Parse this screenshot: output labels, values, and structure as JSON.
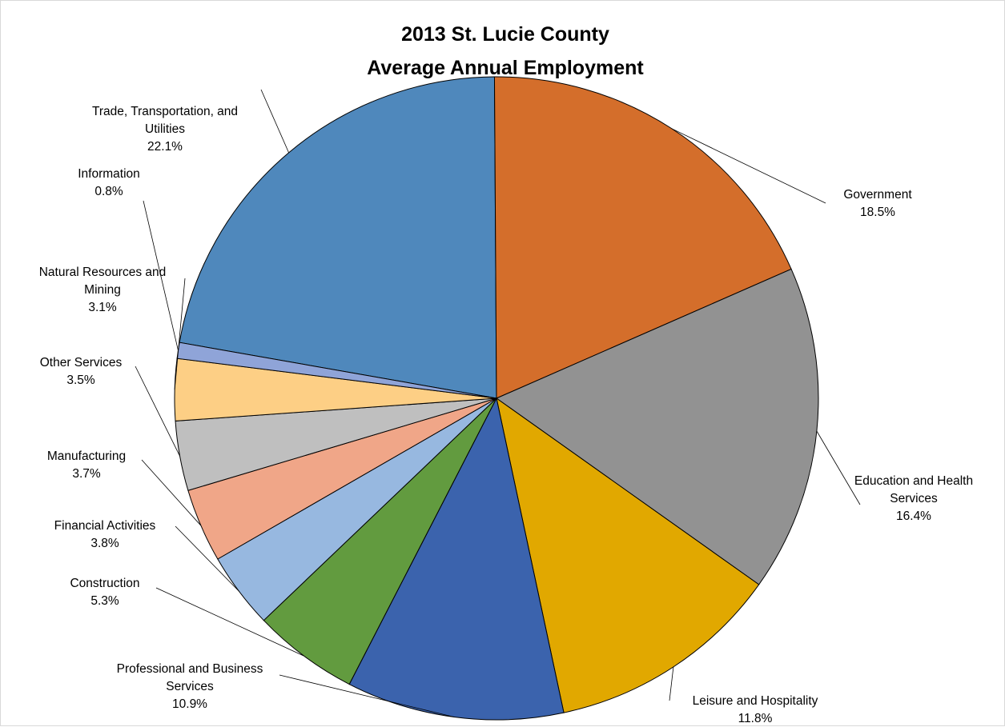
{
  "chart_data": {
    "type": "pie",
    "title": "2013 St. Lucie County",
    "subtitle": "Average Annual Employment",
    "slices": [
      {
        "label": "Trade, Transportation, and Utilities",
        "value": 22.1,
        "pct_label": "22.1%",
        "color": "#4f88bc"
      },
      {
        "label": "Government",
        "value": 18.5,
        "pct_label": "18.5%",
        "color": "#d46e2b"
      },
      {
        "label": "Education and Health Services",
        "value": 16.4,
        "pct_label": "16.4%",
        "color": "#929292"
      },
      {
        "label": "Leisure and Hospitality",
        "value": 11.8,
        "pct_label": "11.8%",
        "color": "#e1a800"
      },
      {
        "label": "Professional and Business Services",
        "value": 10.9,
        "pct_label": "10.9%",
        "color": "#3b63ad"
      },
      {
        "label": "Construction",
        "value": 5.3,
        "pct_label": "5.3%",
        "color": "#629b3f"
      },
      {
        "label": "Financial Activities",
        "value": 3.8,
        "pct_label": "3.8%",
        "color": "#97b8e0"
      },
      {
        "label": "Manufacturing",
        "value": 3.7,
        "pct_label": "3.7%",
        "color": "#f0a688"
      },
      {
        "label": "Other Services",
        "value": 3.5,
        "pct_label": "3.5%",
        "color": "#bfbfbf"
      },
      {
        "label": "Natural Resources and Mining",
        "value": 3.1,
        "pct_label": "3.1%",
        "color": "#fdcf85"
      },
      {
        "label": "Information",
        "value": 0.8,
        "pct_label": "0.8%",
        "color": "#8fa4d8"
      }
    ],
    "legend": "none"
  }
}
